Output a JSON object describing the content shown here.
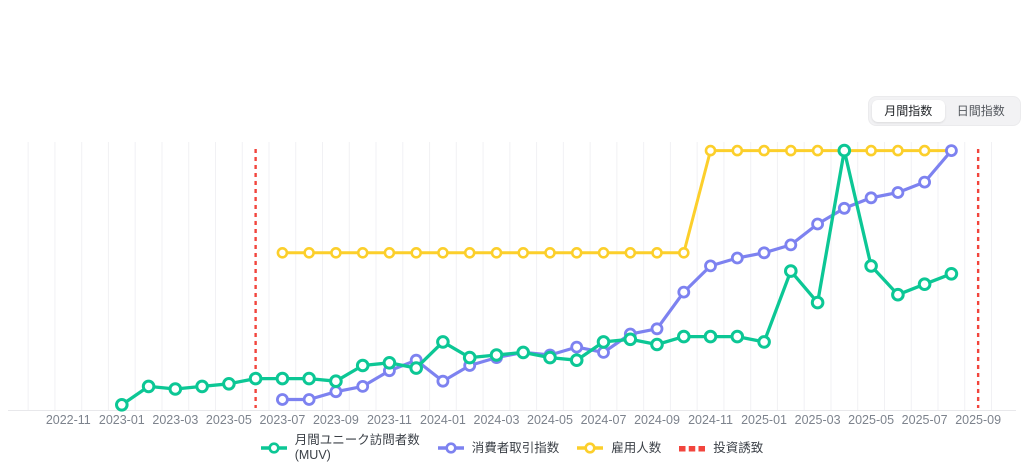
{
  "view_toggle": {
    "options": [
      "月間指数",
      "日間指数"
    ],
    "selected": "月間指数"
  },
  "chart_data": {
    "type": "line",
    "title": "",
    "xlabel": "",
    "ylabel": "",
    "grid": "vertical-monthly",
    "legend_position": "bottom",
    "y_axis_visible": false,
    "ylim": [
      0,
      105
    ],
    "x_tick_labels": [
      "2022-11",
      "2023-01",
      "2023-03",
      "2023-05",
      "2023-07",
      "2023-09",
      "2023-11",
      "2024-01",
      "2024-03",
      "2024-05",
      "2024-07",
      "2024-09",
      "2024-11",
      "2025-01",
      "2025-03",
      "2025-05",
      "2025-07",
      "2025-09"
    ],
    "series": [
      {
        "name": "月間ユニーク訪問者数 (MUV)",
        "color": "#0cc795",
        "start": "2023-01",
        "values": [
          2,
          9,
          8,
          9,
          10,
          12,
          12,
          12,
          11,
          17,
          18,
          16,
          26,
          20,
          21,
          22,
          20,
          19,
          26,
          27,
          25,
          28,
          28,
          28,
          26,
          53,
          41,
          99,
          55,
          44,
          48,
          52
        ]
      },
      {
        "name": "消費者取引指数",
        "color": "#7d82f0",
        "start": "2023-07",
        "values": [
          4,
          4,
          7,
          9,
          15,
          19,
          11,
          17,
          20,
          22,
          21,
          24,
          22,
          29,
          31,
          45,
          55,
          58,
          60,
          63,
          71,
          77,
          81,
          83,
          87,
          99
        ]
      },
      {
        "name": "雇用人数",
        "color": "#fccf2b",
        "start": "2023-07",
        "values": [
          60,
          60,
          60,
          60,
          60,
          60,
          60,
          60,
          60,
          60,
          60,
          60,
          60,
          60,
          60,
          60,
          99,
          99,
          99,
          99,
          99,
          99,
          99,
          99,
          99,
          99
        ]
      }
    ],
    "event_lines": {
      "name": "投資誘致",
      "color": "#f2453d",
      "style": "dashed-vertical",
      "x": [
        "2023-06",
        "2025-09"
      ]
    }
  },
  "legend": {
    "items": [
      {
        "label": "月間ユニーク訪問者数",
        "sublabel": "(MUV)",
        "color": "#0cc795",
        "type": "line-marker"
      },
      {
        "label": "消費者取引指数",
        "color": "#7d82f0",
        "type": "line-marker"
      },
      {
        "label": "雇用人数",
        "color": "#fccf2b",
        "type": "line-marker"
      },
      {
        "label": "投資誘致",
        "color": "#f2453d",
        "type": "dashed"
      }
    ]
  }
}
